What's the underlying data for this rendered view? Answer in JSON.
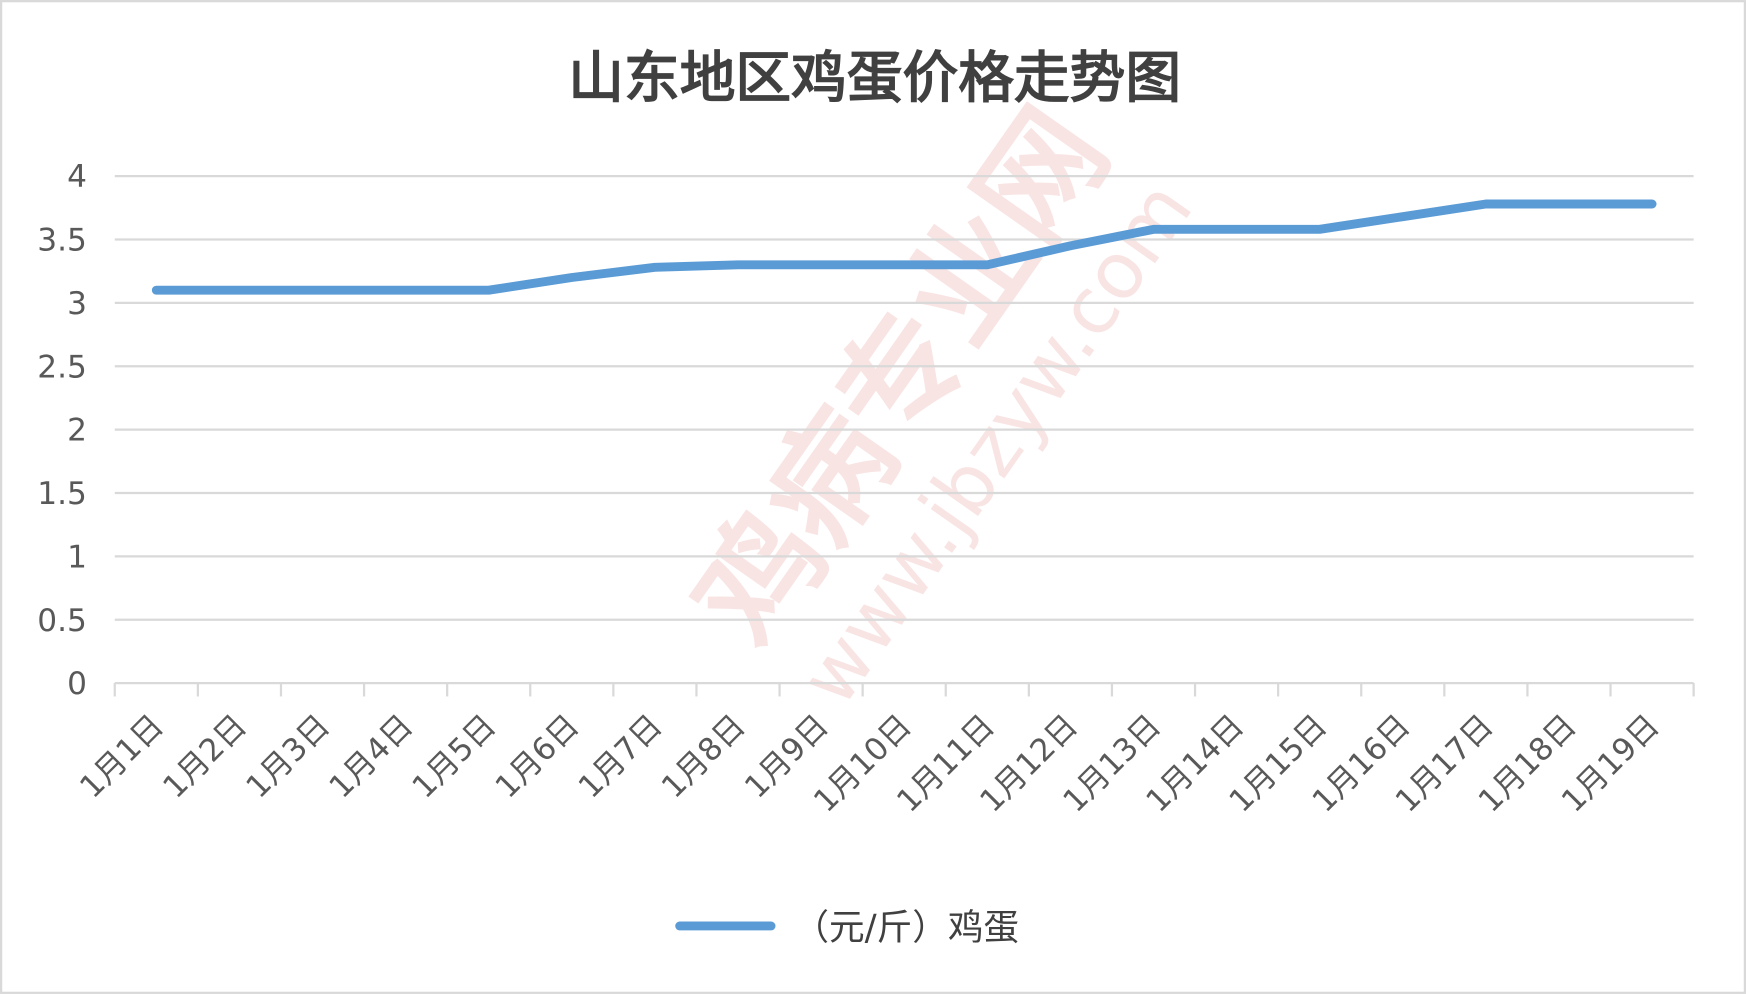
{
  "chart_data": {
    "type": "line",
    "title": "山东地区鸡蛋价格走势图",
    "xlabel": "",
    "ylabel": "",
    "ylim": [
      0,
      4
    ],
    "yticks": [
      "0",
      "0.5",
      "1",
      "1.5",
      "2",
      "2.5",
      "3",
      "3.5",
      "4"
    ],
    "grid": true,
    "legend_position": "bottom",
    "categories": [
      "1月1日",
      "1月2日",
      "1月3日",
      "1月4日",
      "1月5日",
      "1月6日",
      "1月7日",
      "1月8日",
      "1月9日",
      "1月10日",
      "1月11日",
      "1月12日",
      "1月13日",
      "1月14日",
      "1月15日",
      "1月16日",
      "1月17日",
      "1月18日",
      "1月19日"
    ],
    "series": [
      {
        "name": "（元/斤）鸡蛋",
        "color": "#5b9bd5",
        "values": [
          3.1,
          3.1,
          3.1,
          3.1,
          3.1,
          3.2,
          3.28,
          3.3,
          3.3,
          3.3,
          3.3,
          3.45,
          3.58,
          3.58,
          3.58,
          3.68,
          3.78,
          3.78,
          3.78
        ]
      }
    ]
  },
  "watermark": {
    "text": "鸡病专业网",
    "url": "www.jbzyw.com"
  }
}
